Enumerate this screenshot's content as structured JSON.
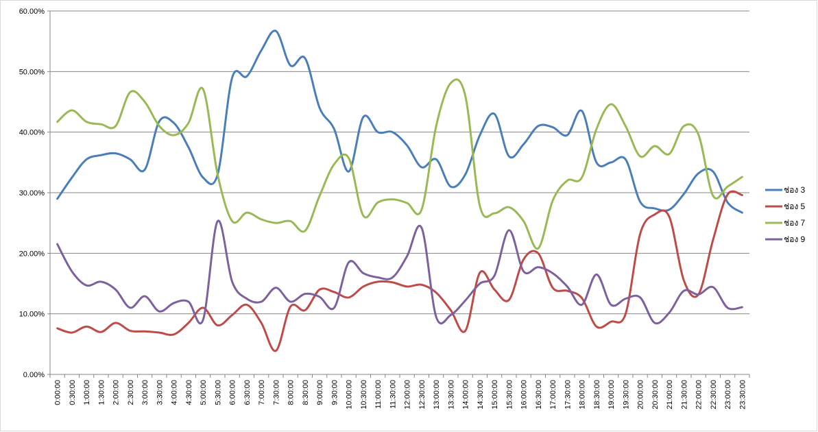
{
  "chart_data": {
    "type": "line",
    "title": "",
    "xlabel": "",
    "ylabel": "",
    "ylim": [
      0,
      0.6
    ],
    "y_ticks": [
      "0.00%",
      "10.00%",
      "20.00%",
      "30.00%",
      "40.00%",
      "50.00%",
      "60.00%"
    ],
    "grid": "horizontal",
    "legend_position": "right",
    "smooth": true,
    "categories": [
      "0:00:00",
      "0:30:00",
      "1:00:00",
      "1:30:00",
      "2:00:00",
      "2:30:00",
      "3:00:00",
      "3:30:00",
      "4:00:00",
      "4:30:00",
      "5:00:00",
      "5:30:00",
      "6:00:00",
      "6:30:00",
      "7:00:00",
      "7:30:00",
      "8:00:00",
      "8:30:00",
      "9:00:00",
      "9:30:00",
      "10:00:00",
      "10:30:00",
      "11:00:00",
      "11:30:00",
      "12:00:00",
      "12:30:00",
      "13:00:00",
      "13:30:00",
      "14:00:00",
      "14:30:00",
      "15:00:00",
      "15:30:00",
      "16:00:00",
      "16:30:00",
      "17:00:00",
      "17:30:00",
      "18:00:00",
      "18:30:00",
      "19:00:00",
      "19:30:00",
      "20:00:00",
      "20:30:00",
      "21:00:00",
      "21:30:00",
      "22:00:00",
      "22:30:00",
      "23:00:00",
      "23:30:00"
    ],
    "series": [
      {
        "name": "ช่อง 3",
        "color": "#4A7EBB",
        "values": [
          0.29,
          0.325,
          0.355,
          0.362,
          0.365,
          0.355,
          0.338,
          0.418,
          0.415,
          0.375,
          0.325,
          0.33,
          0.49,
          0.492,
          0.535,
          0.567,
          0.51,
          0.522,
          0.44,
          0.405,
          0.335,
          0.425,
          0.4,
          0.4,
          0.378,
          0.342,
          0.355,
          0.31,
          0.33,
          0.395,
          0.43,
          0.36,
          0.38,
          0.41,
          0.408,
          0.395,
          0.435,
          0.35,
          0.35,
          0.355,
          0.285,
          0.274,
          0.272,
          0.298,
          0.332,
          0.335,
          0.284,
          0.267
        ]
      },
      {
        "name": "ช่อง 5",
        "color": "#BE4B48",
        "values": [
          0.076,
          0.069,
          0.079,
          0.07,
          0.085,
          0.072,
          0.071,
          0.069,
          0.066,
          0.085,
          0.11,
          0.081,
          0.098,
          0.115,
          0.085,
          0.039,
          0.112,
          0.106,
          0.14,
          0.136,
          0.127,
          0.145,
          0.153,
          0.152,
          0.145,
          0.148,
          0.135,
          0.106,
          0.072,
          0.168,
          0.14,
          0.123,
          0.19,
          0.2,
          0.143,
          0.138,
          0.126,
          0.079,
          0.087,
          0.1,
          0.232,
          0.264,
          0.26,
          0.155,
          0.132,
          0.222,
          0.297,
          0.296
        ]
      },
      {
        "name": "ช่อง 7",
        "color": "#98B954",
        "values": [
          0.417,
          0.436,
          0.417,
          0.413,
          0.41,
          0.466,
          0.45,
          0.41,
          0.395,
          0.415,
          0.471,
          0.33,
          0.253,
          0.267,
          0.256,
          0.25,
          0.253,
          0.237,
          0.295,
          0.347,
          0.357,
          0.262,
          0.284,
          0.289,
          0.283,
          0.272,
          0.41,
          0.481,
          0.46,
          0.278,
          0.266,
          0.276,
          0.253,
          0.208,
          0.287,
          0.32,
          0.325,
          0.405,
          0.446,
          0.41,
          0.36,
          0.377,
          0.364,
          0.41,
          0.396,
          0.295,
          0.31,
          0.326
        ]
      },
      {
        "name": "ช่อง 9",
        "color": "#7D60A0",
        "values": [
          0.215,
          0.17,
          0.147,
          0.153,
          0.14,
          0.11,
          0.129,
          0.104,
          0.118,
          0.12,
          0.09,
          0.253,
          0.153,
          0.125,
          0.12,
          0.143,
          0.12,
          0.133,
          0.128,
          0.11,
          0.185,
          0.167,
          0.16,
          0.16,
          0.195,
          0.242,
          0.095,
          0.098,
          0.122,
          0.15,
          0.163,
          0.238,
          0.17,
          0.177,
          0.167,
          0.145,
          0.115,
          0.165,
          0.115,
          0.125,
          0.127,
          0.085,
          0.102,
          0.138,
          0.132,
          0.144,
          0.11,
          0.111
        ]
      }
    ]
  }
}
